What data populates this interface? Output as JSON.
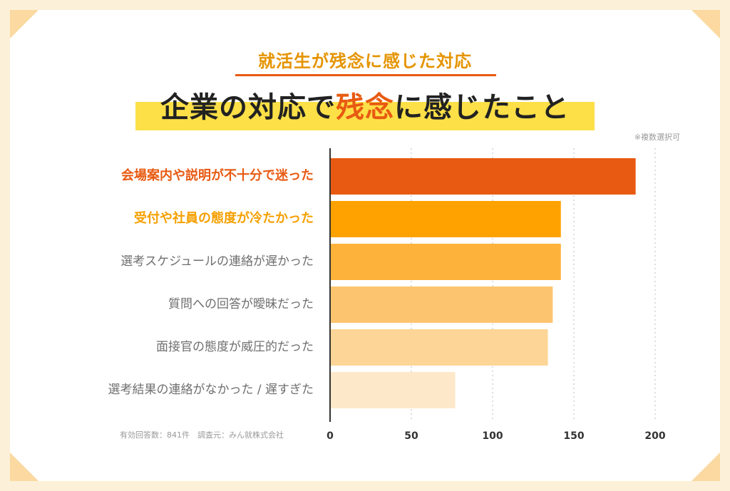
{
  "subtitle": "就活生が残念に感じた対応",
  "title": {
    "before": "企業の対応で",
    "accent": "残念",
    "after": "に感じたこと"
  },
  "note": "※複数選択可",
  "footnote": "有効回答数：841件　調査元：みん就株式会社",
  "colors": {
    "background": "#fdf0d8",
    "accent_red": "#e85a12",
    "accent_orange": "#f5a000",
    "title_band": "#fde047"
  },
  "chart_data": {
    "type": "bar",
    "orientation": "horizontal",
    "title": "企業の対応で残念に感じたこと",
    "categories": [
      "会場案内や説明が不十分で迷った",
      "受付や社員の態度が冷たかった",
      "選考スケジュールの連絡が遅かった",
      "質問への回答が曖昧だった",
      "面接官の態度が威圧的だった",
      "選考結果の連絡がなかった / 遅すぎた"
    ],
    "values": [
      188,
      142,
      142,
      137,
      134,
      77
    ],
    "bar_colors": [
      "#e85a12",
      "#ffa200",
      "#fdb33b",
      "#fdc46f",
      "#fdd596",
      "#fde9c9"
    ],
    "xlim": [
      0,
      200
    ],
    "xticks": [
      "0",
      "50",
      "100",
      "150",
      "200"
    ],
    "grid": true,
    "legend": "none"
  }
}
